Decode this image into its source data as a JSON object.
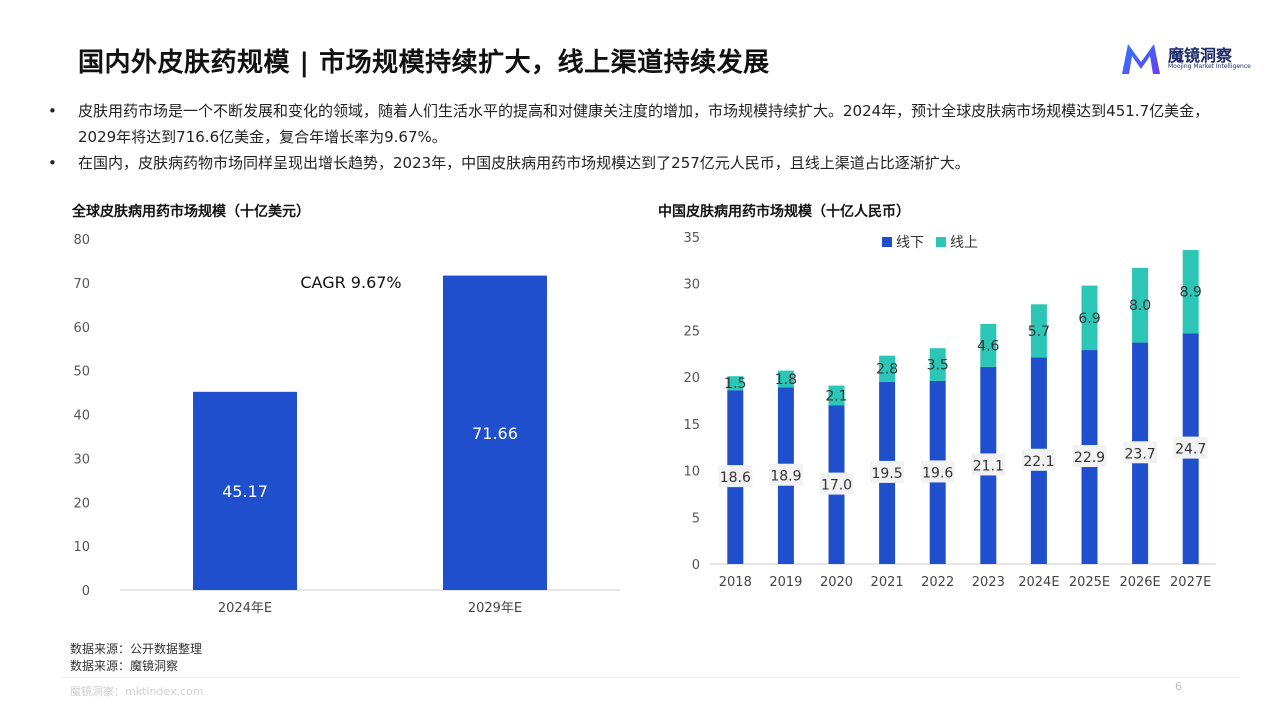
{
  "page": {
    "title": "国内外皮肤药规模 | 市场规模持续扩大，线上渠道持续发展",
    "logo_text": "魔镜洞察",
    "logo_sub": "Moojing Market Intelligence",
    "bullets": [
      "皮肤用药市场是一个不断发展和变化的领域，随着人们生活水平的提高和对健康关注度的增加，市场规模持续扩大。2024年，预计全球皮肤病市场规模达到451.7亿美金，2029年将达到716.6亿美金，复合年增长率为9.67%。",
      "在国内，皮肤病药物市场同样呈现出增长趋势，2023年，中国皮肤病用药市场规模达到了257亿元人民币，且线上渠道占比逐渐扩大。"
    ],
    "bullet_mark": "•",
    "source1": "数据来源：公开数据整理",
    "source2": "数据来源：魔镜洞察",
    "footer": "魔镜洞察：mktindex.com",
    "page_number": "6",
    "colors": {
      "blue": "#1f4fcc",
      "teal": "#2cc6b6",
      "title": "#111111",
      "grid": "#e6e6e6"
    }
  },
  "chart_data": [
    {
      "type": "bar",
      "title": "全球皮肤病用药市场规模（十亿美元）",
      "categories": [
        "2024年E",
        "2029年E"
      ],
      "values": [
        45.17,
        71.66
      ],
      "value_labels": [
        "45.17",
        "71.66"
      ],
      "ylim": [
        0,
        80
      ],
      "yticks": [
        0,
        10,
        20,
        30,
        40,
        50,
        60,
        70,
        80
      ],
      "annotation": "CAGR 9.67%",
      "grid": false
    },
    {
      "type": "bar",
      "stacked": true,
      "title": "中国皮肤病用药市场规模（十亿人民币）",
      "categories": [
        "2018",
        "2019",
        "2020",
        "2021",
        "2022",
        "2023",
        "2024E",
        "2025E",
        "2026E",
        "2027E"
      ],
      "series": [
        {
          "name": "线下",
          "values": [
            18.6,
            18.9,
            17.0,
            19.5,
            19.6,
            21.1,
            22.1,
            22.9,
            23.7,
            24.7
          ],
          "labels": [
            "18.6",
            "18.9",
            "17.0",
            "19.5",
            "19.6",
            "21.1",
            "22.1",
            "22.9",
            "23.7",
            "24.7"
          ]
        },
        {
          "name": "线上",
          "values": [
            1.5,
            1.8,
            2.1,
            2.8,
            3.5,
            4.6,
            5.7,
            6.9,
            8.0,
            8.9
          ],
          "labels": [
            "1.5",
            "1.8",
            "2.1",
            "2.8",
            "3.5",
            "4.6",
            "5.7",
            "6.9",
            "8.0",
            "8.9"
          ]
        }
      ],
      "ylim": [
        0,
        35
      ],
      "yticks": [
        0,
        5,
        10,
        15,
        20,
        25,
        30,
        35
      ],
      "legend": "top",
      "grid": false
    }
  ]
}
